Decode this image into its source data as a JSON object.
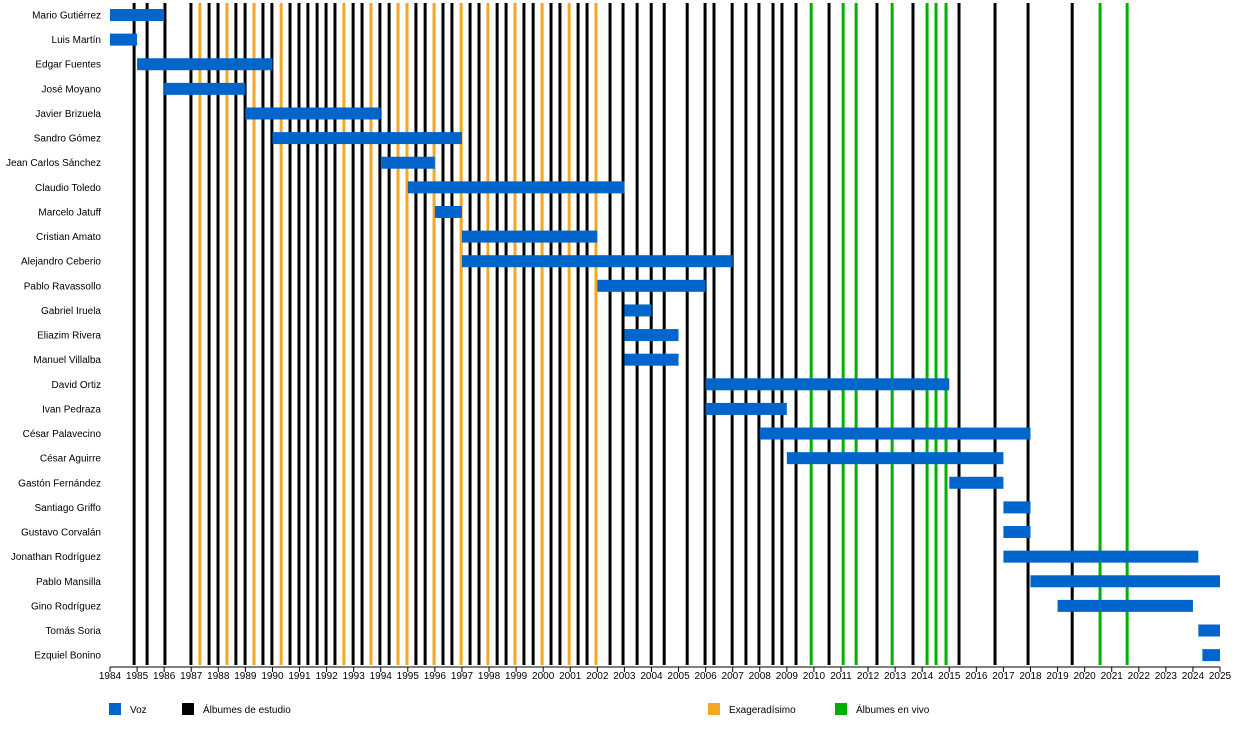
{
  "chart_data": {
    "type": "timeline",
    "title": "",
    "xlim": [
      1984,
      2025
    ],
    "x_ticks": [
      1984,
      1985,
      1986,
      1987,
      1988,
      1989,
      1990,
      1991,
      1992,
      1993,
      1994,
      1995,
      1996,
      1997,
      1998,
      1999,
      2000,
      2001,
      2002,
      2003,
      2004,
      2005,
      2006,
      2007,
      2008,
      2009,
      2010,
      2011,
      2012,
      2013,
      2014,
      2015,
      2016,
      2017,
      2018,
      2019,
      2020,
      2021,
      2022,
      2023,
      2024,
      2025
    ],
    "members": [
      {
        "name": "Mario Gutiérrez",
        "start": 1984,
        "end": 1986
      },
      {
        "name": "Luis Martín",
        "start": 1984,
        "end": 1985
      },
      {
        "name": "Edgar Fuentes",
        "start": 1985,
        "end": 1990
      },
      {
        "name": "José Moyano",
        "start": 1986,
        "end": 1989
      },
      {
        "name": "Javier Brizuela",
        "start": 1989,
        "end": 1994
      },
      {
        "name": "Sandro Gómez",
        "start": 1990,
        "end": 1997
      },
      {
        "name": "Jean Carlos Sánchez",
        "start": 1994,
        "end": 1996
      },
      {
        "name": "Claudio Toledo",
        "start": 1995,
        "end": 2003
      },
      {
        "name": "Marcelo Jatuff",
        "start": 1996,
        "end": 1997
      },
      {
        "name": "Cristian Amato",
        "start": 1997,
        "end": 2002
      },
      {
        "name": "Alejandro Ceberio",
        "start": 1997,
        "end": 2007
      },
      {
        "name": "Pablo Ravassollo",
        "start": 2002,
        "end": 2006
      },
      {
        "name": "Gabriel Iruela",
        "start": 2003,
        "end": 2004
      },
      {
        "name": "Eliazim Rivera",
        "start": 2003,
        "end": 2005
      },
      {
        "name": "Manuel Villalba",
        "start": 2003,
        "end": 2005
      },
      {
        "name": "David Ortiz",
        "start": 2006,
        "end": 2015
      },
      {
        "name": "Ivan Pedraza",
        "start": 2006,
        "end": 2009
      },
      {
        "name": "César Palavecino",
        "start": 2008,
        "end": 2018
      },
      {
        "name": "César Aguirre",
        "start": 2009,
        "end": 2017
      },
      {
        "name": "Gastón Fernández",
        "start": 2015,
        "end": 2017
      },
      {
        "name": "Santiago Griffo",
        "start": 2017,
        "end": 2018
      },
      {
        "name": "Gustavo Corvalán",
        "start": 2017,
        "end": 2018
      },
      {
        "name": "Jonathan Rodríguez",
        "start": 2017,
        "end": 2024.2
      },
      {
        "name": "Pablo Mansilla",
        "start": 2018,
        "end": 2025
      },
      {
        "name": "Gino Rodríguez",
        "start": 2019,
        "end": 2024.0
      },
      {
        "name": "Tomás Soria",
        "start": 2024.2,
        "end": 2025
      },
      {
        "name": "Ezquiel Bonino",
        "start": 2024.35,
        "end": 2025
      }
    ],
    "events": {
      "studio": [
        1984.89,
        1985.37,
        1986.03,
        1986.99,
        1987.66,
        1987.99,
        1988.65,
        1988.99,
        1989.65,
        1989.98,
        1990.65,
        1990.98,
        1991.31,
        1991.65,
        1991.98,
        1992.31,
        1992.98,
        1993.31,
        1993.97,
        1994.31,
        1995.3,
        1995.64,
        1996.3,
        1996.63,
        1997.3,
        1997.63,
        1998.3,
        1998.63,
        1999.29,
        1999.63,
        2000.29,
        2000.62,
        2001.29,
        2001.62,
        2002.47,
        2002.95,
        2003.47,
        2003.99,
        2004.47,
        2005.32,
        2005.98,
        2006.31,
        2006.98,
        2007.49,
        2007.97,
        2008.49,
        2008.82,
        2009.34,
        2010.56,
        2012.33,
        2013.66,
        2015.36,
        2016.69,
        2017.91,
        2019.54
      ],
      "exageradisimo": [
        1987.32,
        1988.32,
        1989.32,
        1990.32,
        1992.64,
        1993.64,
        1994.64,
        1994.97,
        1995.97,
        1996.97,
        1997.96,
        1998.96,
        1999.96,
        2000.96,
        2001.95
      ],
      "live": [
        2009.9,
        2011.08,
        2011.56,
        2012.89,
        2014.18,
        2014.51,
        2014.88,
        2020.57,
        2021.57
      ]
    },
    "legend": [
      {
        "key": "voice",
        "label": "Voz",
        "color": "#0066cc"
      },
      {
        "key": "studio",
        "label": "Álbumes de estudio",
        "color": "#000000"
      },
      {
        "key": "exageradisimo",
        "label": "Exageradísimo",
        "color": "#f5a623"
      },
      {
        "key": "live",
        "label": "Álbumes en vivo",
        "color": "#00b000"
      }
    ],
    "legend_position": "bottom"
  }
}
